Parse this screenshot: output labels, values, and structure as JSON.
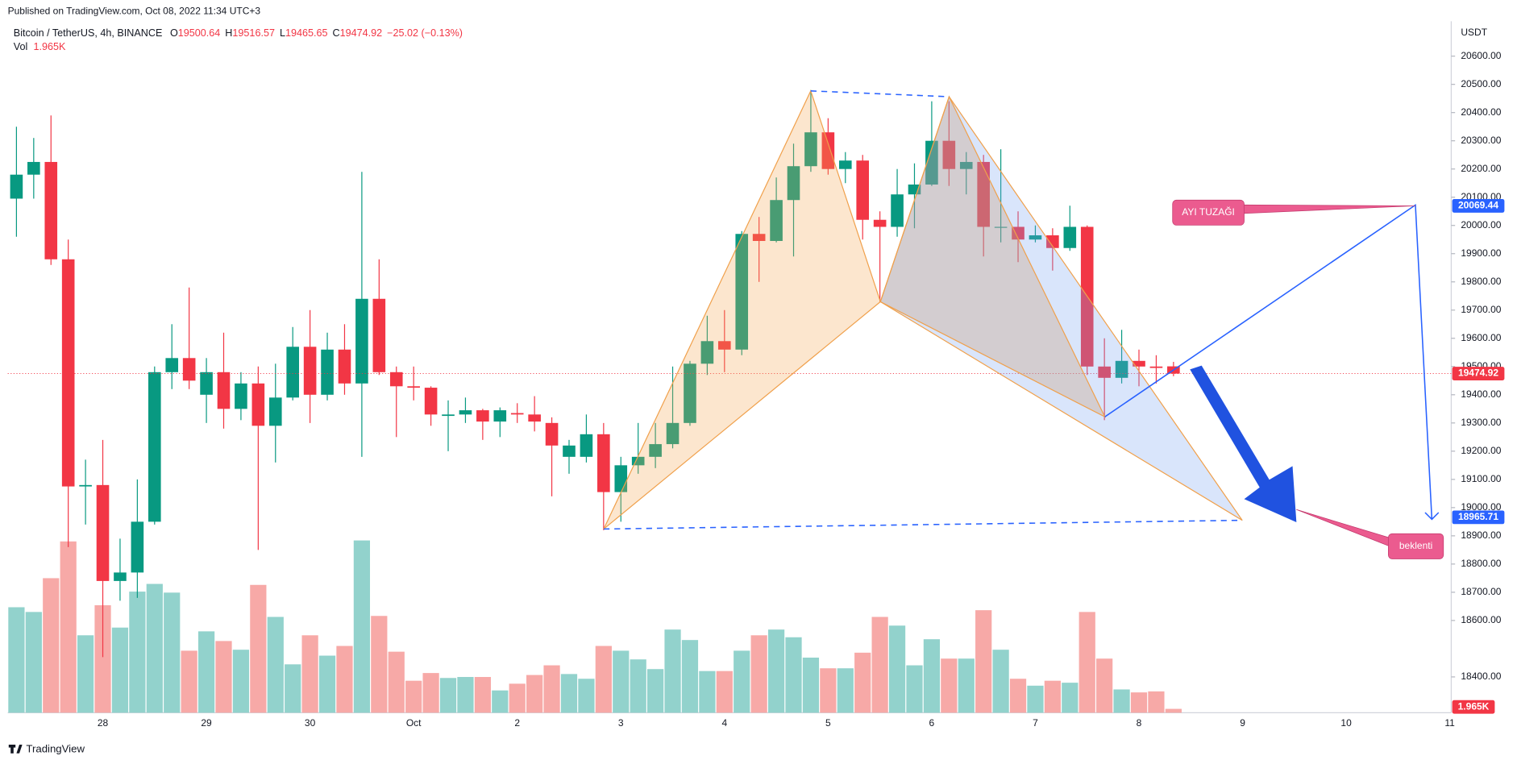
{
  "published": "Published on TradingView.com, Oct 08, 2022 11:34 UTC+3",
  "brand": "TradingView",
  "chart_data": {
    "type": "candlestick",
    "symbol": "Bitcoin / TetherUS, 4h, BINANCE",
    "ohlc_letters": [
      "O",
      "H",
      "L",
      "C"
    ],
    "change_label": "−25.02 (−0.13%)",
    "volume_name": "Vol",
    "volume_last_label": "1.965K",
    "y_axis_label": "USDT",
    "open": [
      20095,
      20180,
      20225,
      19880,
      19075,
      19080,
      18740,
      18770,
      18950,
      19480,
      19530,
      19400,
      19480,
      19350,
      19440,
      19290,
      19390,
      19570,
      19400,
      19560,
      19440,
      19740,
      19480,
      19430,
      19425,
      19325,
      19330,
      19345,
      19305,
      19335,
      19330,
      19300,
      19180,
      19180,
      19260,
      19055,
      19150,
      19180,
      19225,
      19300,
      19510,
      19590,
      19560,
      19970,
      19945,
      20090,
      20210,
      20330,
      20200,
      20230,
      20020,
      19995,
      20110,
      20145,
      20300,
      20200,
      20225,
      19995,
      19995,
      19950,
      19965,
      19920,
      19995,
      19500,
      19460,
      19520,
      19500,
      19500.64
    ],
    "high": [
      20350,
      20310,
      20390,
      19950,
      19170,
      19240,
      18890,
      19100,
      19500,
      19650,
      19780,
      19530,
      19620,
      19480,
      19500,
      19510,
      19640,
      19700,
      19620,
      19650,
      20190,
      19880,
      19500,
      19500,
      19430,
      19380,
      19390,
      19350,
      19355,
      19370,
      19395,
      19320,
      19240,
      19330,
      19300,
      19180,
      19300,
      19300,
      19500,
      19520,
      19680,
      19700,
      19980,
      20030,
      20170,
      20290,
      20480,
      20380,
      20260,
      20250,
      20050,
      20200,
      20220,
      20440,
      20440,
      20260,
      20250,
      20270,
      20050,
      20000,
      19990,
      20070,
      20000,
      19600,
      19630,
      19560,
      19540,
      19516.57
    ],
    "low": [
      19960,
      20095,
      19860,
      18860,
      18940,
      18470,
      18670,
      18680,
      18940,
      19420,
      19420,
      19300,
      19280,
      19310,
      18850,
      19160,
      19380,
      19300,
      19380,
      19400,
      19180,
      19470,
      19250,
      19380,
      19290,
      19200,
      19300,
      19240,
      19250,
      19300,
      19270,
      19040,
      19120,
      19160,
      18920,
      18950,
      19120,
      19140,
      19210,
      19290,
      19470,
      19480,
      19540,
      19800,
      19940,
      19890,
      20190,
      20180,
      20150,
      19950,
      19730,
      19960,
      19990,
      20140,
      20140,
      20110,
      19890,
      19940,
      19870,
      19940,
      19840,
      19910,
      19470,
      19310,
      19440,
      19430,
      19440,
      19465.65
    ],
    "close": [
      20180,
      20225,
      19880,
      19075,
      19080,
      18740,
      18770,
      18950,
      19480,
      19530,
      19450,
      19480,
      19350,
      19440,
      19290,
      19390,
      19570,
      19400,
      19560,
      19440,
      19740,
      19480,
      19430,
      19425,
      19330,
      19330,
      19345,
      19305,
      19345,
      19330,
      19305,
      19220,
      19220,
      19260,
      19055,
      19150,
      19180,
      19225,
      19300,
      19510,
      19590,
      19560,
      19970,
      19945,
      20090,
      20210,
      20330,
      20200,
      20230,
      20020,
      19995,
      20110,
      20145,
      20300,
      20200,
      20225,
      19995,
      19995,
      19950,
      19965,
      19920,
      19995,
      19500,
      19460,
      19520,
      19500,
      19495,
      19474.92
    ],
    "volume": [
      53.4,
      51.0,
      68.1,
      86.7,
      39.2,
      54.4,
      43.1,
      61.3,
      65.2,
      60.8,
      31.4,
      41.2,
      36.3,
      31.9,
      64.7,
      48.5,
      24.5,
      39.2,
      28.9,
      33.8,
      87.2,
      49.0,
      30.9,
      16.2,
      20.1,
      17.6,
      18.1,
      18.1,
      11.3,
      14.7,
      19.1,
      24.0,
      19.6,
      17.2,
      33.8,
      31.4,
      27.0,
      22.1,
      42.1,
      36.8,
      21.1,
      21.1,
      31.4,
      39.2,
      42.1,
      38.2,
      27.9,
      22.5,
      22.5,
      30.4,
      48.5,
      44.1,
      24.0,
      37.2,
      27.4,
      27.4,
      51.9,
      31.9,
      17.2,
      13.7,
      16.2,
      15.2,
      51.0,
      27.4,
      11.8,
      10.3,
      10.8,
      1.965
    ],
    "volume_lim": [
      0,
      347
    ],
    "up_color": "#089981",
    "down_color": "#f23645",
    "up_volume_color": "#92d2cc",
    "down_volume_color": "#f7a9a7",
    "xtick_labels": [
      "28",
      "29",
      "30",
      "Oct",
      "2",
      "3",
      "4",
      "5",
      "6",
      "7",
      "8",
      "9",
      "10",
      "11"
    ],
    "ylim": [
      18273,
      20703
    ],
    "yticks": [
      {
        "value": 20600,
        "label": "20600.00"
      },
      {
        "value": 20500,
        "label": "20500.00"
      },
      {
        "value": 20400,
        "label": "20400.00"
      },
      {
        "value": 20300,
        "label": "20300.00"
      },
      {
        "value": 20200,
        "label": "20200.00"
      },
      {
        "value": 20100,
        "label": "20100.00"
      },
      {
        "value": 20000,
        "label": "20000.00"
      },
      {
        "value": 19900,
        "label": "19900.00"
      },
      {
        "value": 19800,
        "label": "19800.00"
      },
      {
        "value": 19700,
        "label": "19700.00"
      },
      {
        "value": 19600,
        "label": "19600.00"
      },
      {
        "value": 19500,
        "label": "19500.00"
      },
      {
        "value": 19400,
        "label": "19400.00"
      },
      {
        "value": 19300,
        "label": "19300.00"
      },
      {
        "value": 19200,
        "label": "19200.00"
      },
      {
        "value": 19100,
        "label": "19100.00"
      },
      {
        "value": 19000,
        "label": "19000.00"
      },
      {
        "value": 18900,
        "label": "18900.00"
      },
      {
        "value": 18800,
        "label": "18800.00"
      },
      {
        "value": 18700,
        "label": "18700.00"
      },
      {
        "value": 18600,
        "label": "18600.00"
      },
      {
        "value": 18400,
        "label": "18400.00"
      }
    ],
    "grid": false,
    "annotations": [
      {
        "text": "AYI TUZAĞI",
        "price": 20069.44
      },
      {
        "text": "beklenti",
        "price": 18965.71
      }
    ]
  }
}
